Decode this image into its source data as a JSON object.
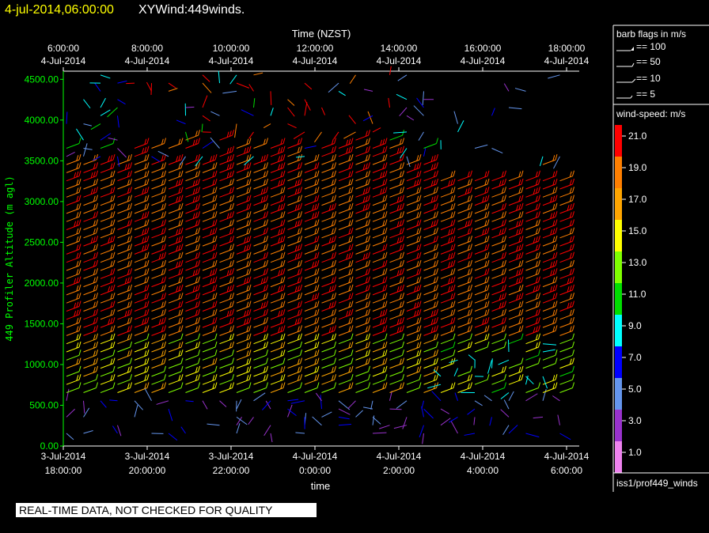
{
  "header": {
    "timestamp": "4-jul-2014,06:00:00",
    "title": "XYWind:449winds."
  },
  "notice": "REAL-TIME DATA, NOT CHECKED FOR QUALITY",
  "chart_data": {
    "type": "wind-barb",
    "top_axis_title": "Time (NZST)",
    "xlabel": "time",
    "ylabel": "449 Profiler Altitude (m agl)",
    "x_range": [
      "3-Jul-2014 18:00:00",
      "4-Jul-2014 06:15:00"
    ],
    "ylim": [
      0,
      4600
    ],
    "bottom_ticks": [
      {
        "date": "3-Jul-2014",
        "time": "18:00:00"
      },
      {
        "date": "3-Jul-2014",
        "time": "20:00:00"
      },
      {
        "date": "3-Jul-2014",
        "time": "22:00:00"
      },
      {
        "date": "4-Jul-2014",
        "time": "0:00:00"
      },
      {
        "date": "4-Jul-2014",
        "time": "2:00:00"
      },
      {
        "date": "4-Jul-2014",
        "time": "4:00:00"
      },
      {
        "date": "4-Jul-2014",
        "time": "6:00:00"
      }
    ],
    "top_ticks": [
      {
        "time": "6:00:00",
        "date": "4-Jul-2014"
      },
      {
        "time": "8:00:00",
        "date": "4-Jul-2014"
      },
      {
        "time": "10:00:00",
        "date": "4-Jul-2014"
      },
      {
        "time": "12:00:00",
        "date": "4-Jul-2014"
      },
      {
        "time": "14:00:00",
        "date": "4-Jul-2014"
      },
      {
        "time": "16:00:00",
        "date": "4-Jul-2014"
      },
      {
        "time": "18:00:00",
        "date": "4-Jul-2014"
      }
    ],
    "y_ticks": [
      "0.00",
      "500.00",
      "1000.00",
      "1500.00",
      "2000.00",
      "2500.00",
      "3000.00",
      "3500.00",
      "4000.00",
      "4500.00"
    ],
    "barb_legend": {
      "title": "barb flags in m/s",
      "items": [
        "== 100",
        "== 50",
        "== 10",
        "== 5"
      ]
    },
    "speed_legend": {
      "title": "wind-speed: m/s",
      "levels": [
        {
          "label": "21.0",
          "color": "#ff0000"
        },
        {
          "label": "19.0",
          "color": "#ff7f00"
        },
        {
          "label": "17.0",
          "color": "#ffa500"
        },
        {
          "label": "15.0",
          "color": "#ffff00"
        },
        {
          "label": "13.0",
          "color": "#7fff00"
        },
        {
          "label": "11.0",
          "color": "#00dd00"
        },
        {
          "label": "9.0",
          "color": "#00ffff"
        },
        {
          "label": "7.0",
          "color": "#0000ff"
        },
        {
          "label": "5.0",
          "color": "#6495ed"
        },
        {
          "label": "3.0",
          "color": "#9932cc"
        },
        {
          "label": "1.0",
          "color": "#ee82ee"
        }
      ]
    },
    "source_label": "iss1/prof449_winds",
    "colors": {
      "axis": "#00ff00",
      "title": "#ffff00"
    }
  }
}
